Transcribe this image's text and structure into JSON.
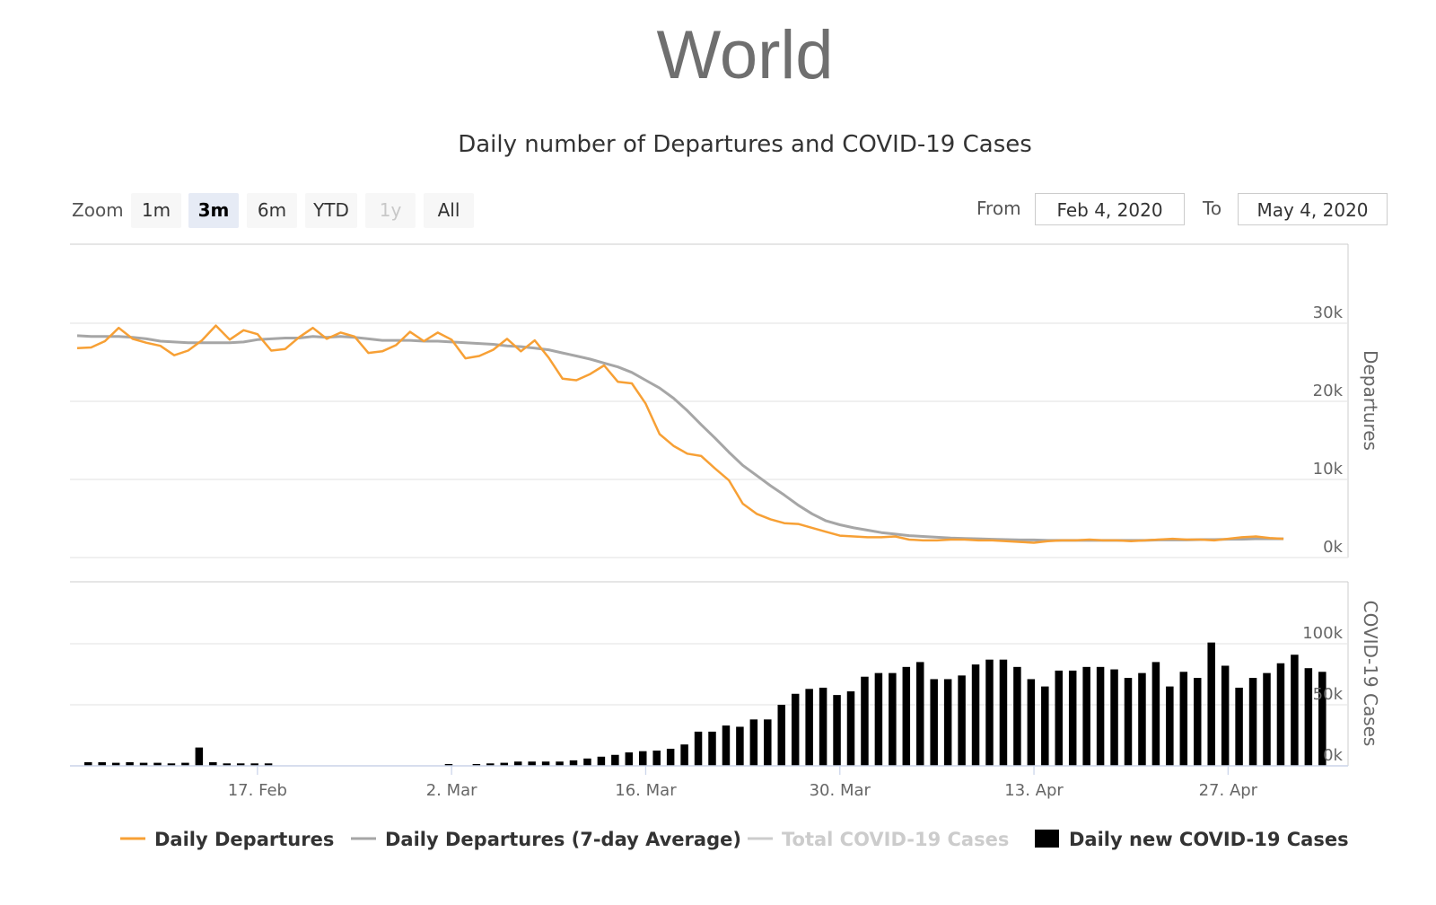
{
  "page": {
    "title": "World"
  },
  "range_selector": {
    "zoom_label": "Zoom",
    "buttons": [
      {
        "label": "1m",
        "state": "normal"
      },
      {
        "label": "3m",
        "state": "active"
      },
      {
        "label": "6m",
        "state": "normal"
      },
      {
        "label": "YTD",
        "state": "normal"
      },
      {
        "label": "1y",
        "state": "disabled"
      },
      {
        "label": "All",
        "state": "normal"
      }
    ],
    "from_label": "From",
    "from_value": "Feb 4, 2020",
    "to_label": "To",
    "to_value": "May 4, 2020"
  },
  "colors": {
    "daily_departures": "#f7a035",
    "avg_departures": "#a6a6a6",
    "total_cases": "#cccccc",
    "daily_cases": "#000000",
    "grid": "#e6e6e6"
  },
  "chart_data": {
    "type": "line",
    "title": "Daily number of Departures and COVID-19 Cases",
    "x_range": [
      "2020-02-04",
      "2020-05-04"
    ],
    "x_ticks": [
      "17. Feb",
      "2. Mar",
      "16. Mar",
      "30. Mar",
      "13. Apr",
      "27. Apr"
    ],
    "grid": true,
    "legend_position": "bottom",
    "panels": [
      {
        "ylabel": "Departures",
        "y_ticks": [
          "0k",
          "10k",
          "20k",
          "30k"
        ],
        "ylim": [
          0,
          35000
        ],
        "series": [
          {
            "name": "Daily Departures",
            "type": "line",
            "values": [
              26800,
              26900,
              27700,
              29400,
              28000,
              27500,
              27100,
              25900,
              26500,
              27800,
              29700,
              27900,
              29100,
              28600,
              26500,
              26700,
              28200,
              29400,
              28000,
              28800,
              28300,
              26200,
              26400,
              27200,
              28900,
              27700,
              28800,
              27900,
              25500,
              25800,
              26600,
              28000,
              26400,
              27800,
              25600,
              22900,
              22700,
              23500,
              24600,
              22500,
              22300,
              19700,
              15800,
              14300,
              13300,
              13000,
              11400,
              9900,
              6900,
              5600,
              4900,
              4400,
              4300,
              3800,
              3300,
              2800,
              2700,
              2600,
              2600,
              2700,
              2300,
              2200,
              2200,
              2300,
              2300,
              2200,
              2200,
              2100,
              2000,
              1900,
              2100,
              2200,
              2200,
              2300,
              2200,
              2200,
              2100,
              2200,
              2300,
              2400,
              2300,
              2300,
              2200,
              2400,
              2600,
              2700,
              2500,
              2400
            ]
          },
          {
            "name": "Daily Departures (7-day Average)",
            "type": "line",
            "values": [
              28400,
              28300,
              28300,
              28300,
              28200,
              28000,
              27700,
              27600,
              27500,
              27500,
              27500,
              27500,
              27600,
              27900,
              28000,
              28100,
              28100,
              28300,
              28200,
              28300,
              28200,
              28000,
              27800,
              27800,
              27800,
              27700,
              27700,
              27600,
              27500,
              27400,
              27300,
              27100,
              27000,
              26800,
              26600,
              26200,
              25800,
              25400,
              24900,
              24400,
              23700,
              22700,
              21700,
              20400,
              18800,
              17000,
              15300,
              13500,
              11800,
              10500,
              9200,
              8000,
              6700,
              5600,
              4700,
              4200,
              3800,
              3500,
              3200,
              3000,
              2800,
              2700,
              2600,
              2500,
              2450,
              2400,
              2350,
              2300,
              2250,
              2250,
              2200,
              2200,
              2200,
              2200,
              2200,
              2200,
              2200,
              2200,
              2250,
              2250,
              2250,
              2300,
              2300,
              2350,
              2350,
              2400,
              2400,
              2400
            ]
          },
          {
            "name": "Total COVID-19 Cases",
            "type": "line",
            "hidden": true,
            "values": []
          }
        ]
      },
      {
        "ylabel": "COVID-19 Cases",
        "y_ticks": [
          "0k",
          "50k",
          "100k"
        ],
        "ylim": [
          0,
          150000
        ],
        "series": [
          {
            "name": "Daily new COVID-19 Cases",
            "type": "column",
            "values": [
              3000,
              3000,
              2500,
              3000,
              2500,
              2500,
              2000,
              2500,
              15000,
              3000,
              2000,
              2000,
              2000,
              2000,
              0,
              0,
              0,
              0,
              0,
              0,
              0,
              0,
              0,
              0,
              0,
              0,
              1500,
              0,
              1500,
              2000,
              2500,
              3500,
              3500,
              3500,
              3500,
              4500,
              6000,
              7500,
              9000,
              11000,
              12000,
              12500,
              14000,
              17500,
              28000,
              28000,
              33000,
              32000,
              38000,
              38000,
              50000,
              59000,
              63000,
              64000,
              58000,
              61000,
              73000,
              76000,
              76000,
              81000,
              85000,
              71000,
              71000,
              74000,
              83000,
              87000,
              87000,
              81000,
              71000,
              65000,
              78000,
              78000,
              81000,
              81000,
              79000,
              72000,
              76000,
              85000,
              65000,
              77000,
              72000,
              101000,
              82000,
              64000,
              72000,
              76000,
              84000,
              91000,
              80000,
              77000
            ]
          }
        ]
      }
    ]
  }
}
